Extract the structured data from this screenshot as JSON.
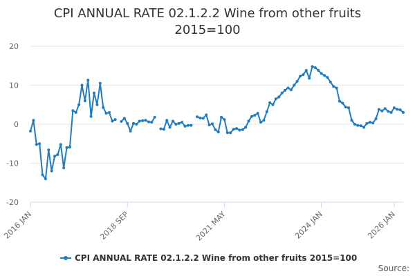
{
  "chart_data": {
    "type": "line",
    "title": "CPI ANNUAL RATE 02.1.2.2 Wine from other fruits 2015=100",
    "xlabel": "",
    "ylabel": "",
    "ylim": [
      -20,
      20
    ],
    "yticks": [
      -20,
      -10,
      0,
      10,
      20
    ],
    "x_start": "2016 JAN",
    "x_ticks": [
      "2016 JAN",
      "2018 SEP",
      "2021 MAY",
      "2024 JAN",
      "2026 JAN"
    ],
    "grid": "horizontal",
    "legend_position": "bottom",
    "series": [
      {
        "name": "CPI ANNUAL RATE 02.1.2.2 Wine from other fruits 2015=100",
        "color": "#1f7bbf",
        "marker": "circle",
        "values": [
          -1.8,
          1.0,
          -5.2,
          -5.0,
          -13.0,
          -14.0,
          -6.6,
          -12.0,
          -8.2,
          -7.8,
          -5.2,
          -11.2,
          -6.0,
          -5.9,
          3.5,
          3.0,
          5.0,
          10.0,
          6.0,
          11.3,
          2.0,
          8.0,
          5.0,
          10.5,
          4.3,
          2.8,
          3.0,
          0.8,
          1.2,
          null,
          0.7,
          1.5,
          0.2,
          -1.8,
          0.2,
          0.0,
          0.8,
          0.9,
          1.0,
          0.6,
          0.5,
          1.8,
          null,
          -1.2,
          -1.3,
          1.0,
          -0.8,
          0.8,
          0.0,
          0.2,
          0.5,
          -0.5,
          -0.3,
          -0.3,
          null,
          1.9,
          1.6,
          1.5,
          2.4,
          -0.2,
          0.1,
          -1.4,
          -2.0,
          1.8,
          1.2,
          -2.2,
          -2.2,
          -1.3,
          -1.1,
          -1.5,
          -1.4,
          -0.8,
          0.8,
          2.0,
          2.3,
          2.8,
          0.5,
          1.0,
          3.2,
          5.5,
          5.0,
          6.5,
          7.0,
          8.0,
          8.7,
          9.3,
          8.8,
          10.0,
          11.0,
          12.3,
          12.7,
          13.8,
          11.8,
          14.8,
          14.5,
          13.8,
          13.0,
          12.5,
          12.0,
          10.8,
          9.7,
          9.3,
          5.9,
          5.4,
          4.4,
          4.2,
          1.0,
          0.0,
          -0.3,
          -0.4,
          -0.8,
          0.2,
          0.5,
          0.3,
          1.4,
          3.8,
          3.4,
          4.0,
          3.3,
          3.0,
          4.2,
          3.8,
          3.7,
          3.0
        ]
      }
    ]
  },
  "source_text": "Source:"
}
